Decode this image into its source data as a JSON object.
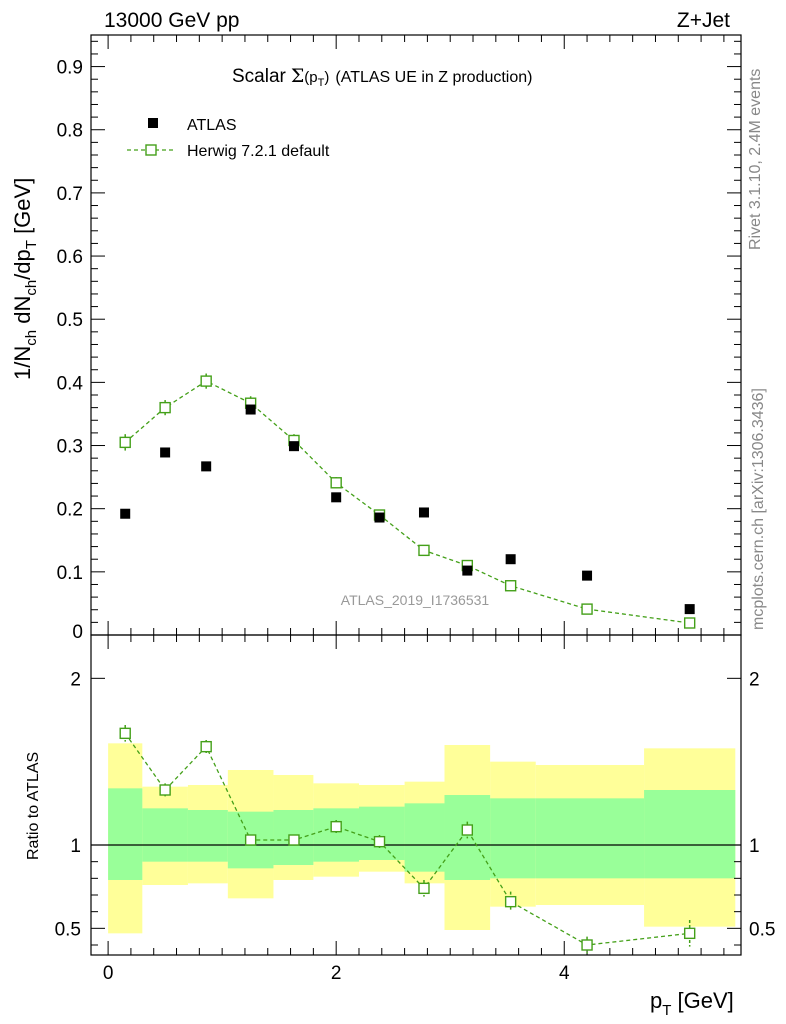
{
  "chart_data": [
    {
      "panel": "main",
      "type": "scatter",
      "title_prefix": "Scalar",
      "title_sigma": "Σ",
      "title_sigma_args": "(p",
      "title_sigma_sub": "T",
      "title_sigma_close": ")",
      "title_rest": "(ATLAS UE in Z production)",
      "top_left_label": "13000 GeV pp",
      "top_right_label": "Z+Jet",
      "ylabel": "1/N_ch dN_ch/dp_T [GeV]",
      "ylim": [
        0,
        0.95
      ],
      "yticks": [
        0.1,
        0.2,
        0.3,
        0.4,
        0.5,
        0.6,
        0.7,
        0.8,
        0.9
      ],
      "ytick_labels": [
        "0.1",
        "0.2",
        "0.3",
        "0.4",
        "0.5",
        "0.6",
        "0.7",
        "0.8",
        "0.9"
      ],
      "ytick_zero_label": "0",
      "xlim": [
        -0.15,
        5.55
      ],
      "watermark": "ATLAS_2019_I1736531",
      "legend": [
        {
          "name": "ATLAS",
          "marker": "filled-square",
          "color": "#000000"
        },
        {
          "name": "Herwig 7.2.1 default",
          "marker": "open-square-dashed",
          "color": "#44a019"
        }
      ],
      "series": [
        {
          "name": "ATLAS",
          "x": [
            0.15,
            0.5,
            0.86,
            1.25,
            1.63,
            2.0,
            2.38,
            2.77,
            3.15,
            3.53,
            4.2,
            5.1
          ],
          "y": [
            0.192,
            0.289,
            0.267,
            0.357,
            0.299,
            0.218,
            0.186,
            0.194,
            0.102,
            0.12,
            0.094,
            0.041
          ]
        },
        {
          "name": "Herwig 7.2.1 default",
          "x": [
            0.15,
            0.5,
            0.86,
            1.25,
            1.63,
            2.0,
            2.38,
            2.77,
            3.15,
            3.53,
            4.2,
            5.1
          ],
          "y": [
            0.305,
            0.36,
            0.402,
            0.367,
            0.308,
            0.241,
            0.19,
            0.134,
            0.11,
            0.078,
            0.041,
            0.019
          ],
          "yerr": [
            0.013,
            0.012,
            0.012,
            0.011,
            0.01,
            0.009,
            0.006,
            0.005,
            0.004,
            0.004,
            0.003,
            0.003
          ]
        }
      ]
    },
    {
      "panel": "ratio",
      "type": "scatter",
      "ylabel": "Ratio to ATLAS",
      "xlabel": "p_T [GeV]",
      "ylim": [
        0.34,
        2.26
      ],
      "yticks": [
        0.5,
        1,
        2
      ],
      "ytick_labels": [
        "0.5",
        "1",
        "2"
      ],
      "xticks": [
        0,
        2,
        4
      ],
      "xtick_labels": [
        "0",
        "2",
        "4"
      ],
      "bands": {
        "edges": [
          0.0,
          0.3,
          0.7,
          1.05,
          1.45,
          1.8,
          2.2,
          2.6,
          2.95,
          3.35,
          3.75,
          4.7,
          5.5
        ],
        "outer_lo": [
          0.47,
          0.76,
          0.77,
          0.68,
          0.79,
          0.81,
          0.84,
          0.77,
          0.49,
          0.63,
          0.64,
          0.51
        ],
        "outer_hi": [
          1.61,
          1.35,
          1.36,
          1.45,
          1.42,
          1.37,
          1.36,
          1.38,
          1.6,
          1.5,
          1.48,
          1.58
        ],
        "inner_lo": [
          0.79,
          0.9,
          0.9,
          0.86,
          0.88,
          0.9,
          0.91,
          0.84,
          0.79,
          0.8,
          0.8,
          0.8
        ],
        "inner_hi": [
          1.34,
          1.22,
          1.21,
          1.2,
          1.21,
          1.22,
          1.23,
          1.25,
          1.3,
          1.28,
          1.28,
          1.33
        ]
      },
      "series": [
        {
          "name": "Herwig 7.2.1 default",
          "x": [
            0.15,
            0.5,
            0.86,
            1.25,
            1.63,
            2.0,
            2.38,
            2.77,
            3.15,
            3.53,
            4.2,
            5.1
          ],
          "y": [
            1.67,
            1.33,
            1.59,
            1.03,
            1.03,
            1.11,
            1.02,
            0.74,
            1.09,
            0.66,
            0.4,
            0.47
          ],
          "yerr": [
            0.05,
            0.04,
            0.04,
            0.03,
            0.03,
            0.04,
            0.04,
            0.05,
            0.05,
            0.06,
            0.05,
            0.08
          ]
        }
      ]
    }
  ],
  "side_labels": {
    "rivet": "Rivet 3.1.10,  2.4M events",
    "mcplots": "mcplots.cern.ch [arXiv:1306.3436]"
  },
  "colors": {
    "atlas": "#000000",
    "herwig": "#44a019",
    "band_outer": "#ffff99",
    "band_inner": "#99ff99",
    "watermark": "#888888"
  }
}
